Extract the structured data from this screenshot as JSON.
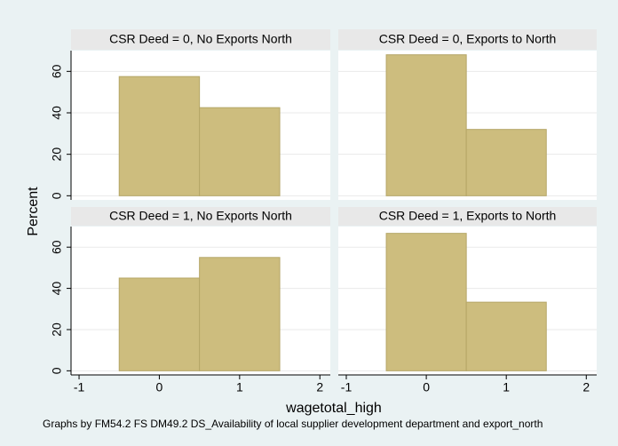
{
  "figure": {
    "ylabel": "Percent",
    "xlabel": "wagetotal_high",
    "note": "Graphs by FM54.2 FS DM49.2 DS_Availability of local supplier development department and export_north"
  },
  "chart_data": [
    {
      "type": "histogram",
      "title": "CSR Deed = 0, No Exports North",
      "bins": [
        -0.5,
        0.5,
        1.5
      ],
      "values": [
        57.5,
        42.5
      ],
      "color": "#cdbd7e",
      "xlim": [
        -1.1,
        2.13
      ],
      "ylim": [
        -2,
        70
      ],
      "yticks": [
        0,
        20,
        40,
        60
      ],
      "grid": true
    },
    {
      "type": "histogram",
      "title": "CSR Deed = 0, Exports to North",
      "bins": [
        -0.5,
        0.5,
        1.5
      ],
      "values": [
        68,
        32
      ],
      "color": "#cdbd7e",
      "xlim": [
        -1.1,
        2.13
      ],
      "ylim": [
        -2,
        70
      ],
      "yticks": [
        0,
        20,
        40,
        60
      ],
      "grid": true
    },
    {
      "type": "histogram",
      "title": "CSR Deed = 1, No Exports North",
      "bins": [
        -0.5,
        0.5,
        1.5
      ],
      "values": [
        45,
        55
      ],
      "color": "#cdbd7e",
      "xlim": [
        -1.1,
        2.13
      ],
      "ylim": [
        -2,
        70
      ],
      "xticks": [
        -1,
        0,
        1,
        2
      ],
      "yticks": [
        0,
        20,
        40,
        60
      ],
      "grid": true
    },
    {
      "type": "histogram",
      "title": "CSR Deed = 1, Exports to North",
      "bins": [
        -0.5,
        0.5,
        1.5
      ],
      "values": [
        66.7,
        33.3
      ],
      "color": "#cdbd7e",
      "xlim": [
        -1.1,
        2.13
      ],
      "ylim": [
        -2,
        70
      ],
      "xticks": [
        -1,
        0,
        1,
        2
      ],
      "yticks": [
        0,
        20,
        40,
        60
      ],
      "grid": true
    }
  ]
}
